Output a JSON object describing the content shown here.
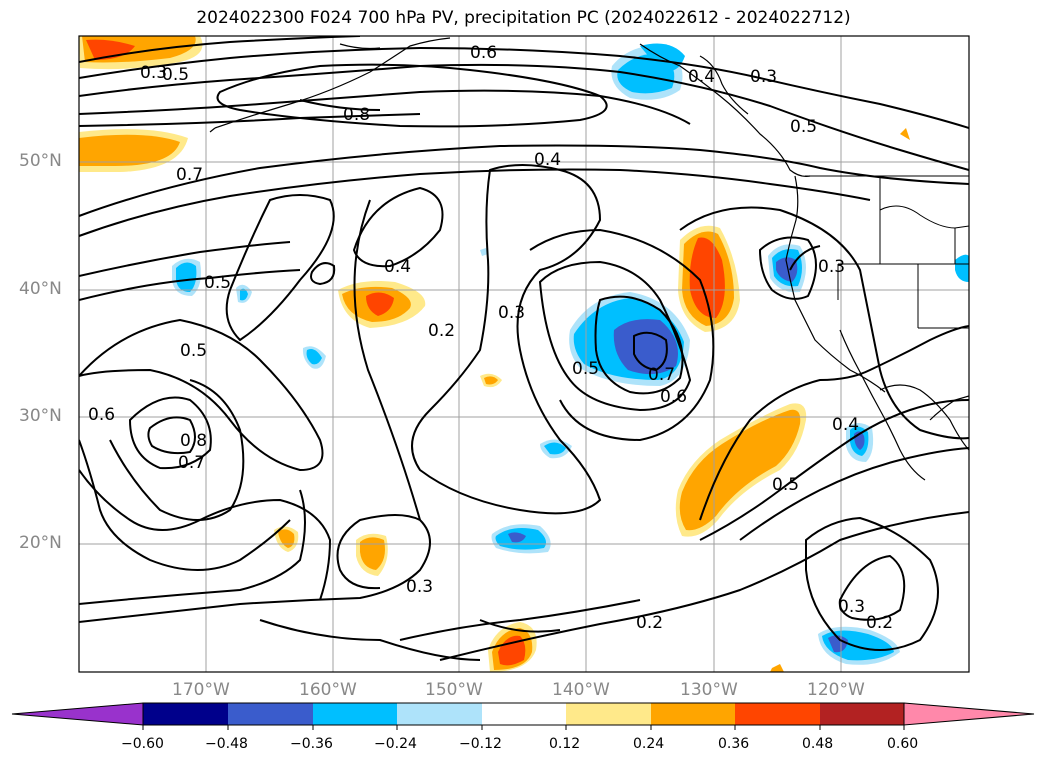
{
  "title": "2024022300 F024 700 hPa PV, precipitation PC (2024022612 - 2024022712)",
  "lat_labels": [
    "50°N",
    "40°N",
    "30°N",
    "20°N"
  ],
  "lon_labels": [
    "170°W",
    "160°W",
    "150°W",
    "140°W",
    "130°W",
    "120°W"
  ],
  "colorbar": {
    "ticks": [
      "−0.60",
      "−0.48",
      "−0.36",
      "−0.24",
      "−0.12",
      "0.12",
      "0.24",
      "0.36",
      "0.48",
      "0.60"
    ],
    "colors": [
      "#9932cc",
      "#00008b",
      "#3a5ccc",
      "#00bfff",
      "#aee3fa",
      "#ffffff",
      "#ffe98a",
      "#ffa500",
      "#ff4500",
      "#b22222",
      "#ff88aa"
    ]
  },
  "contour_labels": [
    "0.6",
    "0.3",
    "0.4",
    "0.5",
    "0.8",
    "0.7",
    "0.4",
    "0.5",
    "0.5",
    "0.5",
    "0.3",
    "0.4",
    "0.2",
    "0.3",
    "0.5",
    "0.7",
    "0.6",
    "0.6",
    "0.8",
    "0.7",
    "0.5",
    "0.4",
    "0.3",
    "0.3",
    "0.2",
    "0.3",
    "0.2"
  ],
  "shade_colors": {
    "light_blue": "#aee3fa",
    "cyan": "#00bfff",
    "blue": "#3a5ccc",
    "yellow": "#ffe98a",
    "orange": "#ffa500",
    "red": "#ff4500"
  }
}
